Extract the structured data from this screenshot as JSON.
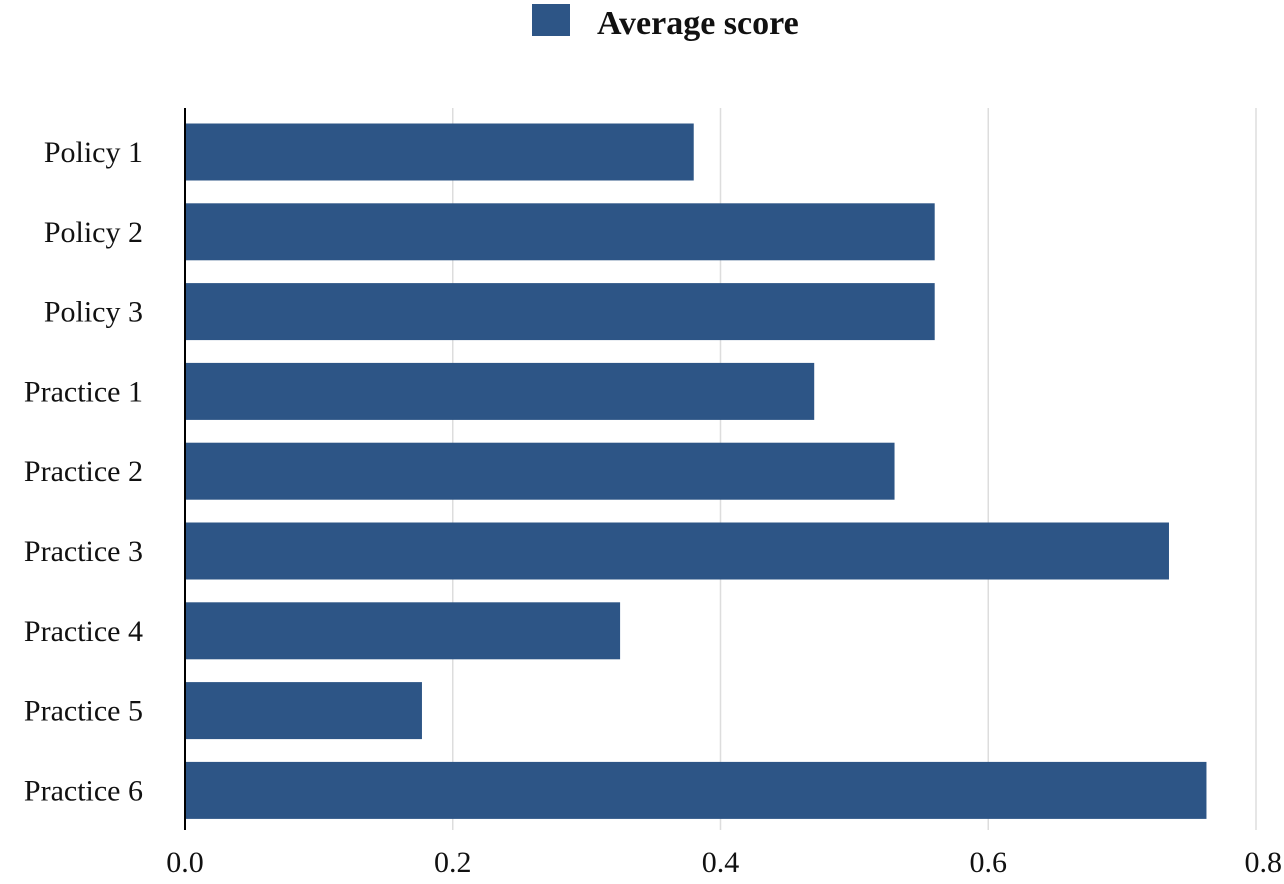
{
  "colors": {
    "bar": "#2d5586"
  },
  "chart_data": {
    "type": "bar",
    "orientation": "horizontal",
    "title": "",
    "xlabel": "",
    "ylabel": "",
    "categories": [
      "Policy 1",
      "Policy 2",
      "Policy 3",
      "Practice 1",
      "Practice 2",
      "Practice 3",
      "Practice 4",
      "Practice 5",
      "Practice 6"
    ],
    "series": [
      {
        "name": "Average score",
        "values": [
          0.38,
          0.56,
          0.56,
          0.47,
          0.53,
          0.735,
          0.325,
          0.177,
          0.763
        ]
      }
    ],
    "xlim": [
      0,
      0.8
    ],
    "xticks": [
      "0.0",
      "0.2",
      "0.4",
      "0.6",
      "0.8"
    ],
    "grid": "vertical",
    "legend_position": "top-center"
  }
}
